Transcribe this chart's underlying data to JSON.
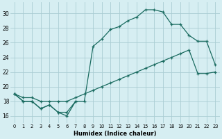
{
  "xlabel": "Humidex (Indice chaleur)",
  "bg_color": "#d6eef2",
  "grid_color": "#aacdd4",
  "line_color": "#1a6b60",
  "xlim": [
    -0.5,
    23.5
  ],
  "ylim": [
    15,
    31.5
  ],
  "xticks": [
    0,
    1,
    2,
    3,
    4,
    5,
    6,
    7,
    8,
    9,
    10,
    11,
    12,
    13,
    14,
    15,
    16,
    17,
    18,
    19,
    20,
    21,
    22,
    23
  ],
  "yticks": [
    16,
    18,
    20,
    22,
    24,
    26,
    28,
    30
  ],
  "series": [
    {
      "x": [
        0,
        1,
        2,
        3,
        4,
        5,
        6,
        7
      ],
      "y": [
        19,
        18,
        18,
        17,
        17.5,
        16.5,
        16.5,
        18
      ]
    },
    {
      "x": [
        0,
        1,
        2,
        3,
        4,
        5,
        6,
        7,
        8,
        9,
        10,
        11,
        12,
        13,
        14,
        15,
        16,
        17,
        18,
        19,
        20,
        21,
        22,
        23
      ],
      "y": [
        19,
        18,
        18,
        17,
        17.5,
        16.5,
        16,
        18,
        18,
        25.5,
        26.5,
        27.8,
        28.2,
        29.0,
        29.5,
        30.5,
        30.5,
        30.2,
        28.5,
        28.5,
        27.0,
        26.2,
        26.2,
        23.0
      ]
    },
    {
      "x": [
        0,
        1,
        2,
        3,
        4,
        5,
        6,
        7,
        8,
        9,
        10,
        11,
        12,
        13,
        14,
        15,
        16,
        17,
        18,
        19,
        20,
        21,
        22,
        23
      ],
      "y": [
        19,
        18.5,
        18.5,
        18,
        18,
        18,
        18,
        18.5,
        19,
        19.5,
        20,
        20.5,
        21,
        21.5,
        22,
        22.5,
        23,
        23.5,
        24,
        24.5,
        25,
        21.8,
        21.8,
        22
      ]
    }
  ]
}
